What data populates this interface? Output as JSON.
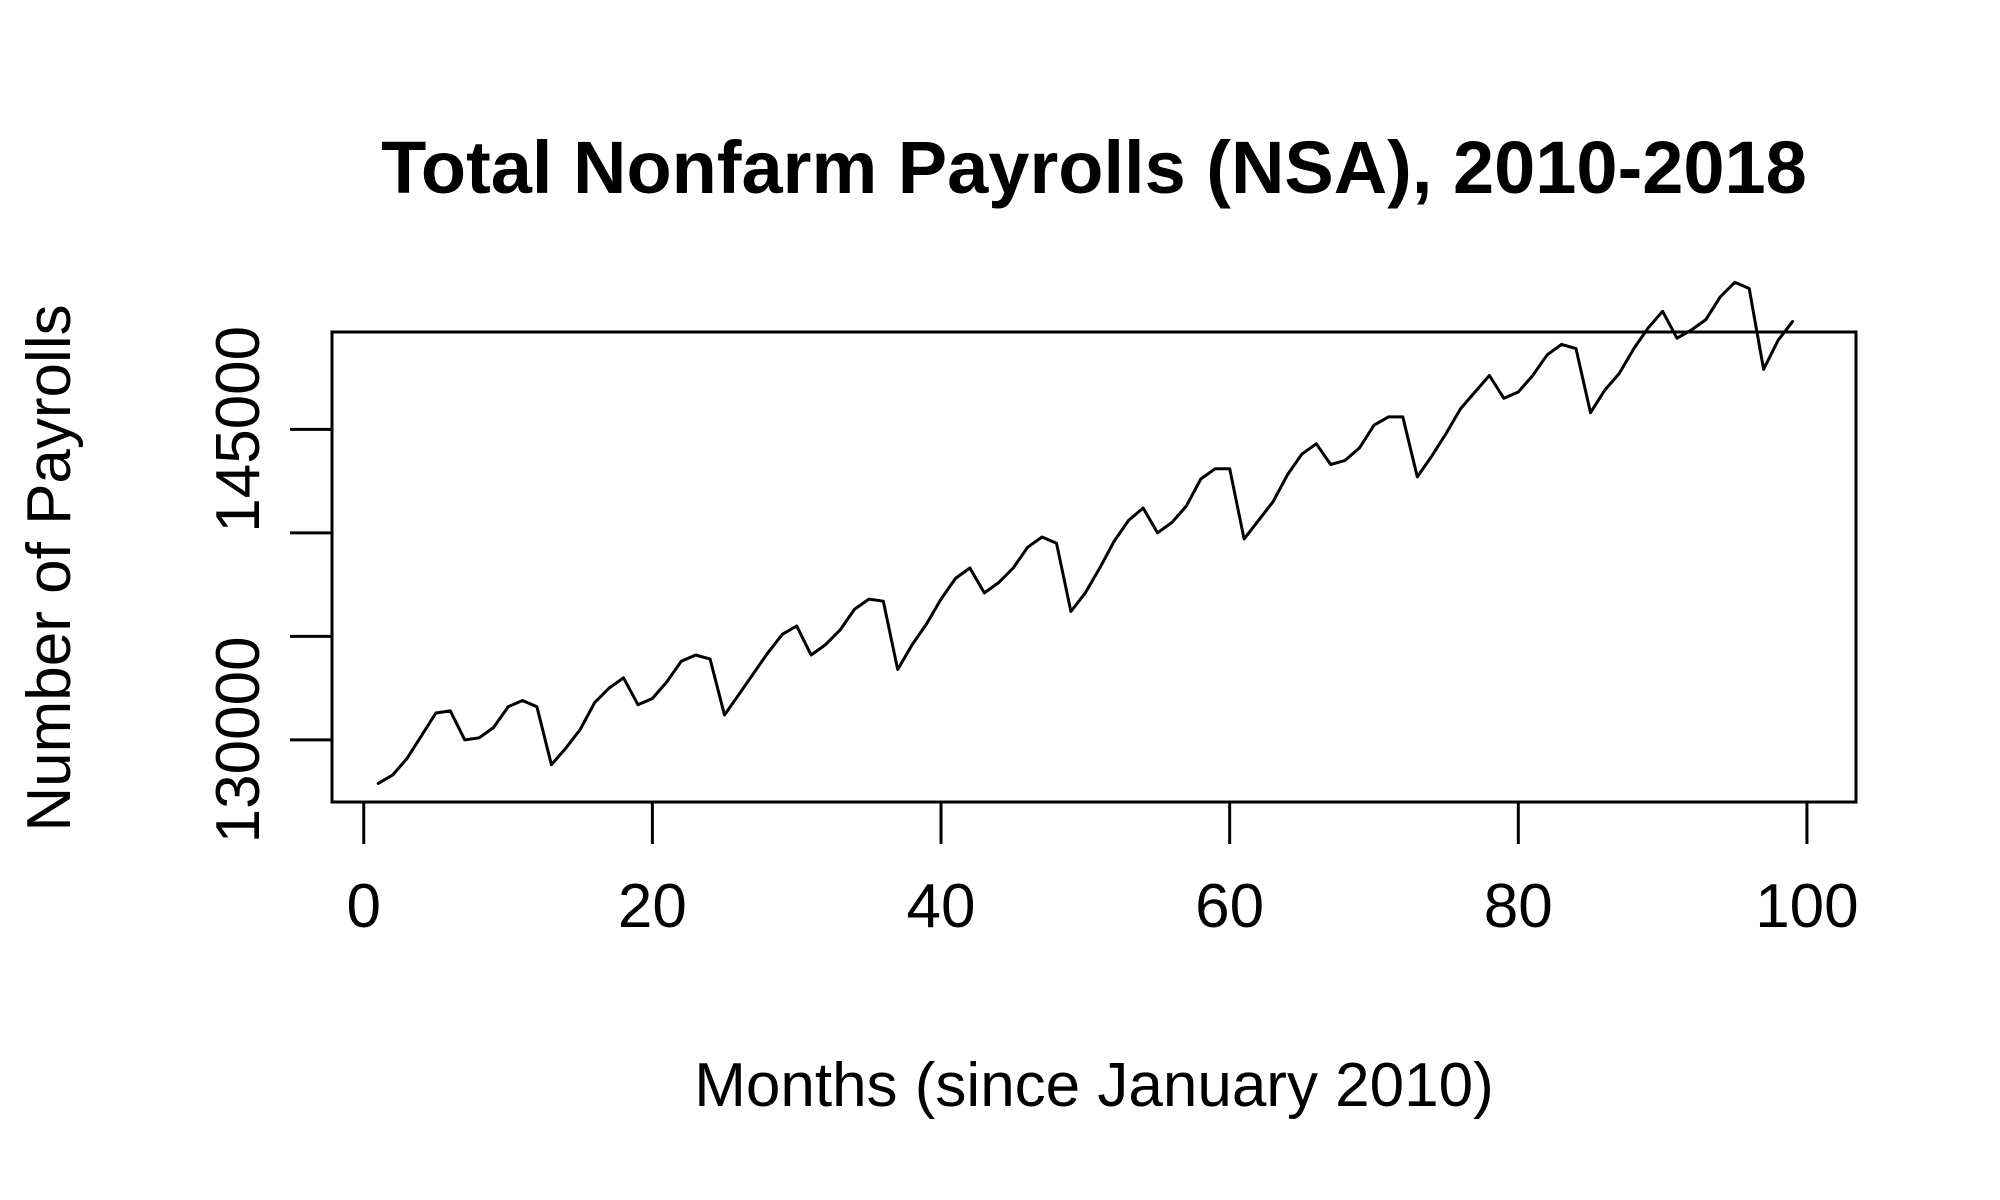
{
  "chart_data": {
    "type": "line",
    "title": "Total Nonfarm Payrolls (NSA), 2010-2018",
    "xlabel": "Months (since January 2010)",
    "ylabel": "Number of Payrolls",
    "xlim": [
      -2.2,
      103.4
    ],
    "ylim": [
      127000,
      149700
    ],
    "x_ticks": [
      0,
      20,
      40,
      60,
      80,
      100
    ],
    "x_tick_labels": [
      "0",
      "20",
      "40",
      "60",
      "80",
      "100"
    ],
    "y_ticks": [
      130000,
      135000,
      140000,
      145000
    ],
    "y_tick_labels": [
      "130000",
      "",
      "",
      "145000"
    ],
    "grid": false,
    "line_color": "#000000",
    "series": [
      {
        "x": [
          1,
          2,
          3,
          4,
          5,
          6,
          7,
          8,
          9,
          10,
          11,
          12,
          13,
          14,
          15,
          16,
          17,
          18,
          19,
          20,
          21,
          22,
          23,
          24,
          25,
          26,
          27,
          28,
          29,
          30,
          31,
          32,
          33,
          34,
          35,
          36,
          37,
          38,
          39,
          40,
          41,
          42,
          43,
          44,
          45,
          46,
          47,
          48,
          49,
          50,
          51,
          52,
          53,
          54,
          55,
          56,
          57,
          58,
          59,
          60,
          61,
          62,
          63,
          64,
          65,
          66,
          67,
          68,
          69,
          70,
          71,
          72,
          73,
          74,
          75,
          76,
          77,
          78,
          79,
          80,
          81,
          82,
          83,
          84,
          85,
          86,
          87,
          88,
          89,
          90,
          91,
          92,
          93,
          94,
          95,
          96,
          97,
          98,
          99
        ],
        "values": [
          127900,
          128300,
          129100,
          130200,
          131300,
          131400,
          130000,
          130100,
          130600,
          131600,
          131900,
          131600,
          128800,
          129600,
          130500,
          131800,
          132500,
          133000,
          131700,
          132000,
          132800,
          133800,
          134100,
          133900,
          131200,
          132200,
          133200,
          134200,
          135100,
          135500,
          134100,
          134600,
          135300,
          136300,
          136800,
          136700,
          133400,
          134600,
          135600,
          136800,
          137800,
          138300,
          137100,
          137600,
          138300,
          139300,
          139800,
          139500,
          136200,
          137100,
          138300,
          139600,
          140600,
          141200,
          140000,
          140500,
          141300,
          142600,
          143100,
          143100,
          139700,
          140600,
          141500,
          142800,
          143800,
          144300,
          143300,
          143500,
          144100,
          145200,
          145600,
          145600,
          142700,
          143700,
          144800,
          146000,
          146800,
          147600,
          146500,
          146800,
          147600,
          148600,
          149100,
          148900,
          145800,
          146900,
          147700,
          148900,
          149900,
          150700,
          149400,
          149800,
          150300,
          151400,
          152100,
          151800,
          147900,
          149300,
          150200
        ]
      }
    ]
  }
}
